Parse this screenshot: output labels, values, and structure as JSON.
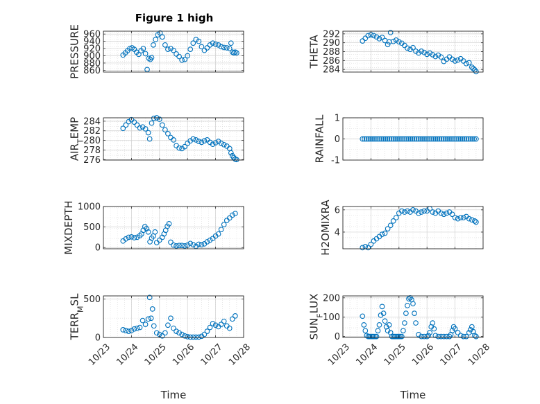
{
  "figure": {
    "title": "Figure 1 high"
  },
  "colors": {
    "marker": "#0072bd",
    "axis": "#262626",
    "grid": "#d9d9d9"
  },
  "chart_data": [
    {
      "type": "scatter",
      "ylabel": "PRESSURE",
      "ylabel_sub": "",
      "ylim": [
        855,
        968
      ],
      "yticks": [
        860,
        880,
        900,
        920,
        940,
        960
      ],
      "xlim": [
        0,
        5
      ],
      "xticks": [
        0,
        1,
        2,
        3,
        4,
        5
      ],
      "xticklabels": [
        "10/23",
        "10/24",
        "10/25",
        "10/26",
        "10/27",
        "10/28"
      ],
      "show_xtick_labels": false,
      "xlabel": "",
      "x": [
        0.7,
        0.78,
        0.86,
        0.94,
        1.02,
        1.1,
        1.18,
        1.26,
        1.34,
        1.42,
        1.5,
        1.56,
        1.62,
        1.67,
        1.72,
        1.78,
        1.86,
        1.94,
        2.02,
        2.1,
        2.2,
        2.3,
        2.4,
        2.5,
        2.6,
        2.7,
        2.8,
        2.9,
        3.0,
        3.1,
        3.2,
        3.3,
        3.4,
        3.5,
        3.6,
        3.7,
        3.8,
        3.9,
        4.0,
        4.1,
        4.2,
        4.3,
        4.4,
        4.5,
        4.55,
        4.6,
        4.65,
        4.7,
        4.75
      ],
      "y": [
        902,
        908,
        914,
        920,
        922,
        918,
        910,
        904,
        914,
        920,
        906,
        862,
        893,
        890,
        895,
        930,
        945,
        958,
        963,
        952,
        930,
        918,
        920,
        915,
        905,
        898,
        888,
        890,
        900,
        918,
        935,
        945,
        940,
        925,
        915,
        922,
        930,
        935,
        932,
        930,
        925,
        923,
        922,
        920,
        935,
        910,
        908,
        910,
        908
      ]
    },
    {
      "type": "scatter",
      "ylabel": "THETA",
      "ylabel_sub": "",
      "ylim": [
        283.4,
        292.6
      ],
      "yticks": [
        284,
        286,
        288,
        290,
        292
      ],
      "xlim": [
        0,
        5
      ],
      "xticks": [
        0,
        1,
        2,
        3,
        4,
        5
      ],
      "xticklabels": [
        "10/23",
        "10/24",
        "10/25",
        "10/26",
        "10/27",
        "10/28"
      ],
      "show_xtick_labels": false,
      "xlabel": "",
      "x": [
        0.7,
        0.8,
        0.9,
        1.0,
        1.1,
        1.2,
        1.3,
        1.4,
        1.5,
        1.6,
        1.65,
        1.7,
        1.8,
        1.9,
        2.0,
        2.1,
        2.2,
        2.3,
        2.4,
        2.5,
        2.6,
        2.7,
        2.8,
        2.9,
        3.0,
        3.1,
        3.2,
        3.3,
        3.4,
        3.5,
        3.6,
        3.7,
        3.8,
        3.9,
        4.0,
        4.1,
        4.2,
        4.3,
        4.4,
        4.5,
        4.6,
        4.65,
        4.7,
        4.75
      ],
      "y": [
        290.4,
        291,
        291.6,
        291.8,
        291.6,
        291.3,
        290.9,
        291.2,
        290.5,
        289.6,
        290.2,
        292.3,
        290.3,
        290.6,
        290.2,
        289.9,
        289.4,
        288.8,
        288.5,
        288.9,
        288.1,
        287.7,
        288.1,
        287.8,
        287.4,
        287.7,
        287.3,
        286.9,
        287.2,
        286.8,
        285.8,
        286.3,
        286.8,
        286.3,
        285.9,
        286.1,
        286.4,
        285.9,
        285.3,
        285.5,
        284.5,
        284.2,
        283.9,
        283.5
      ]
    },
    {
      "type": "scatter",
      "ylabel": "AIR",
      "ylabel_sub": "T",
      "ylabel_tail": "EMP",
      "ylim": [
        275.9,
        284.7
      ],
      "yticks": [
        276,
        278,
        280,
        282,
        284
      ],
      "xlim": [
        0,
        5
      ],
      "xticks": [
        0,
        1,
        2,
        3,
        4,
        5
      ],
      "xticklabels": [
        "10/23",
        "10/24",
        "10/25",
        "10/26",
        "10/27",
        "10/28"
      ],
      "show_xtick_labels": false,
      "xlabel": "",
      "x": [
        0.7,
        0.8,
        0.9,
        1.0,
        1.1,
        1.2,
        1.3,
        1.4,
        1.5,
        1.6,
        1.65,
        1.72,
        1.8,
        1.9,
        2.0,
        2.1,
        2.2,
        2.3,
        2.4,
        2.5,
        2.6,
        2.7,
        2.8,
        2.9,
        3.0,
        3.1,
        3.2,
        3.3,
        3.4,
        3.5,
        3.6,
        3.7,
        3.8,
        3.9,
        4.0,
        4.1,
        4.2,
        4.3,
        4.4,
        4.5,
        4.55,
        4.6,
        4.65,
        4.7,
        4.75
      ],
      "y": [
        282.5,
        283.2,
        283.9,
        284.3,
        283.8,
        283.2,
        282.6,
        282.8,
        282.4,
        281.6,
        280.3,
        283.6,
        284.6,
        284.7,
        284.4,
        283.2,
        282.2,
        281.4,
        280.6,
        280.1,
        278.9,
        278.4,
        278.3,
        278.7,
        279.4,
        279.9,
        280.3,
        280.1,
        279.8,
        279.6,
        279.9,
        280.1,
        279.6,
        279.2,
        279.5,
        279.8,
        279.4,
        279.1,
        278.8,
        278.3,
        277.4,
        276.8,
        276.4,
        276.1,
        276.0
      ]
    },
    {
      "type": "scatter",
      "ylabel": "RAINFALL",
      "ylabel_sub": "",
      "ylim": [
        -1,
        1
      ],
      "yticks": [
        -1,
        0,
        1
      ],
      "xlim": [
        0,
        5
      ],
      "xticks": [
        0,
        1,
        2,
        3,
        4,
        5
      ],
      "xticklabels": [
        "10/23",
        "10/24",
        "10/25",
        "10/26",
        "10/27",
        "10/28"
      ],
      "show_xtick_labels": false,
      "xlabel": "",
      "x_range": [
        0.7,
        4.75
      ],
      "constant_y": 0,
      "n_points": 60,
      "x": [],
      "y": []
    },
    {
      "type": "scatter",
      "ylabel": "MIXDEPTH",
      "ylabel_sub": "",
      "ylim": [
        -30,
        1000
      ],
      "yticks": [
        0,
        500,
        1000
      ],
      "xlim": [
        0,
        5
      ],
      "xticks": [
        0,
        1,
        2,
        3,
        4,
        5
      ],
      "xticklabels": [
        "10/23",
        "10/24",
        "10/25",
        "10/26",
        "10/27",
        "10/28"
      ],
      "show_xtick_labels": false,
      "xlabel": "",
      "x": [
        0.7,
        0.8,
        0.9,
        1.0,
        1.1,
        1.2,
        1.3,
        1.36,
        1.42,
        1.48,
        1.54,
        1.6,
        1.66,
        1.72,
        1.78,
        1.84,
        1.9,
        2.0,
        2.1,
        2.16,
        2.22,
        2.28,
        2.34,
        2.4,
        2.5,
        2.6,
        2.7,
        2.8,
        2.9,
        3.0,
        3.1,
        3.2,
        3.3,
        3.4,
        3.5,
        3.6,
        3.7,
        3.8,
        3.9,
        4.0,
        4.1,
        4.2,
        4.3,
        4.4,
        4.5,
        4.6,
        4.7
      ],
      "y": [
        160,
        210,
        250,
        260,
        240,
        250,
        290,
        330,
        420,
        510,
        460,
        380,
        140,
        230,
        280,
        380,
        120,
        180,
        250,
        330,
        420,
        520,
        580,
        130,
        60,
        40,
        50,
        50,
        40,
        60,
        100,
        70,
        30,
        80,
        70,
        90,
        140,
        180,
        220,
        280,
        330,
        440,
        560,
        660,
        720,
        790,
        830
      ]
    },
    {
      "type": "scatter",
      "ylabel": "H2OMIXRA",
      "ylabel_sub": "",
      "ylim": [
        2.5,
        6.3
      ],
      "yticks": [
        4,
        6
      ],
      "xlim": [
        0,
        5
      ],
      "xticks": [
        0,
        1,
        2,
        3,
        4,
        5
      ],
      "xticklabels": [
        "10/23",
        "10/24",
        "10/25",
        "10/26",
        "10/27",
        "10/28"
      ],
      "show_xtick_labels": false,
      "xlabel": "",
      "x": [
        0.7,
        0.8,
        0.9,
        1.0,
        1.1,
        1.2,
        1.3,
        1.4,
        1.5,
        1.6,
        1.7,
        1.8,
        1.9,
        2.0,
        2.1,
        2.2,
        2.3,
        2.4,
        2.5,
        2.6,
        2.7,
        2.8,
        2.9,
        3.0,
        3.1,
        3.2,
        3.3,
        3.4,
        3.5,
        3.6,
        3.7,
        3.8,
        3.9,
        4.0,
        4.1,
        4.2,
        4.3,
        4.4,
        4.5,
        4.6,
        4.7,
        4.75
      ],
      "y": [
        2.6,
        2.7,
        2.6,
        2.9,
        3.2,
        3.4,
        3.6,
        3.8,
        3.9,
        4.3,
        4.6,
        5.0,
        5.3,
        5.7,
        5.9,
        5.8,
        5.9,
        5.8,
        6.0,
        5.9,
        5.7,
        5.8,
        5.9,
        5.9,
        6.1,
        5.8,
        5.7,
        5.9,
        5.7,
        5.6,
        5.7,
        5.8,
        5.6,
        5.3,
        5.2,
        5.3,
        5.3,
        5.4,
        5.2,
        5.1,
        5.0,
        4.9
      ]
    },
    {
      "type": "scatter",
      "ylabel": "TERR",
      "ylabel_sub": "M",
      "ylabel_tail": "SL",
      "ylim": [
        0,
        540
      ],
      "yticks": [
        0,
        500
      ],
      "xlim": [
        0,
        5
      ],
      "xticks": [
        0,
        1,
        2,
        3,
        4,
        5
      ],
      "xticklabels": [
        "10/23",
        "10/24",
        "10/25",
        "10/26",
        "10/27",
        "10/28"
      ],
      "show_xtick_labels": true,
      "xlabel": "Time",
      "x": [
        0.7,
        0.8,
        0.9,
        1.0,
        1.1,
        1.2,
        1.3,
        1.4,
        1.5,
        1.6,
        1.65,
        1.7,
        1.75,
        1.8,
        1.9,
        2.0,
        2.1,
        2.2,
        2.3,
        2.4,
        2.5,
        2.6,
        2.7,
        2.8,
        2.9,
        3.0,
        3.1,
        3.2,
        3.3,
        3.4,
        3.5,
        3.6,
        3.7,
        3.8,
        3.9,
        4.0,
        4.1,
        4.2,
        4.3,
        4.4,
        4.5,
        4.6,
        4.7
      ],
      "y": [
        100,
        90,
        80,
        90,
        110,
        120,
        130,
        220,
        170,
        240,
        520,
        250,
        370,
        150,
        60,
        40,
        20,
        60,
        160,
        250,
        120,
        80,
        60,
        40,
        20,
        10,
        5,
        5,
        5,
        5,
        15,
        40,
        80,
        130,
        180,
        160,
        140,
        170,
        210,
        150,
        120,
        240,
        280
      ]
    },
    {
      "type": "scatter",
      "ylabel": "SUN",
      "ylabel_sub": "F",
      "ylabel_tail": "LUX",
      "ylim": [
        -5,
        210
      ],
      "yticks": [
        0,
        100,
        200
      ],
      "xlim": [
        0,
        5
      ],
      "xticks": [
        0,
        1,
        2,
        3,
        4,
        5
      ],
      "xticklabels": [
        "10/23",
        "10/24",
        "10/25",
        "10/26",
        "10/27",
        "10/28"
      ],
      "show_xtick_labels": true,
      "xlabel": "Time",
      "x": [
        0.7,
        0.75,
        0.8,
        0.85,
        0.9,
        0.95,
        1.0,
        1.05,
        1.1,
        1.15,
        1.2,
        1.25,
        1.3,
        1.35,
        1.4,
        1.45,
        1.5,
        1.55,
        1.6,
        1.65,
        1.7,
        1.75,
        1.8,
        1.85,
        1.9,
        1.95,
        2.0,
        2.05,
        2.1,
        2.15,
        2.2,
        2.25,
        2.3,
        2.35,
        2.4,
        2.45,
        2.5,
        2.55,
        2.6,
        2.7,
        2.8,
        2.9,
        3.0,
        3.05,
        3.1,
        3.15,
        3.2,
        3.25,
        3.3,
        3.4,
        3.5,
        3.6,
        3.7,
        3.8,
        3.85,
        3.9,
        3.95,
        4.0,
        4.1,
        4.2,
        4.3,
        4.4,
        4.5,
        4.55,
        4.6,
        4.65,
        4.7,
        4.75
      ],
      "y": [
        105,
        60,
        30,
        5,
        0,
        0,
        0,
        0,
        0,
        0,
        0,
        30,
        60,
        110,
        155,
        120,
        80,
        50,
        30,
        60,
        20,
        0,
        0,
        0,
        0,
        0,
        0,
        0,
        0,
        30,
        70,
        120,
        160,
        195,
        200,
        190,
        170,
        120,
        70,
        10,
        0,
        0,
        0,
        5,
        20,
        50,
        70,
        40,
        5,
        0,
        0,
        0,
        0,
        0,
        10,
        30,
        50,
        40,
        20,
        5,
        0,
        0,
        20,
        35,
        50,
        25,
        5,
        0
      ]
    }
  ]
}
